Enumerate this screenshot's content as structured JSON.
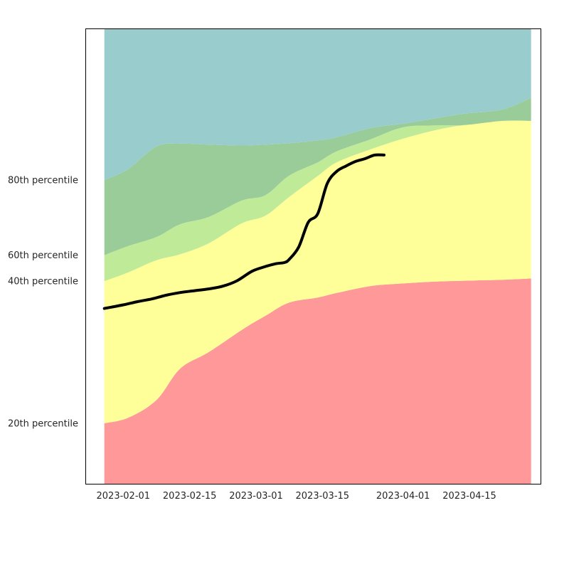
{
  "chart_data": {
    "type": "area",
    "x_axis_type": "date",
    "x_range": [
      "2023-01-24",
      "2023-04-30"
    ],
    "y_range": [
      0,
      100
    ],
    "grid": false,
    "legend": "none",
    "x_ticks": [
      {
        "date": "2023-02-01",
        "label": "2023-02-01"
      },
      {
        "date": "2023-02-15",
        "label": "2023-02-15"
      },
      {
        "date": "2023-03-01",
        "label": "2023-03-01"
      },
      {
        "date": "2023-03-15",
        "label": "2023-03-15"
      },
      {
        "date": "2023-04-01",
        "label": "2023-04-01"
      },
      {
        "date": "2023-04-15",
        "label": "2023-04-15"
      }
    ],
    "y_ticks": [
      {
        "value": 13.3,
        "label": "20th percentile"
      },
      {
        "value": 44.5,
        "label": "40th percentile"
      },
      {
        "value": 50.2,
        "label": "60th percentile"
      },
      {
        "value": 66.7,
        "label": "80th percentile"
      }
    ],
    "band_dates": [
      "2023-01-28",
      "2023-02-02",
      "2023-02-08",
      "2023-02-13",
      "2023-02-19",
      "2023-02-26",
      "2023-03-03",
      "2023-03-08",
      "2023-03-14",
      "2023-03-18",
      "2023-03-25",
      "2023-04-01",
      "2023-04-08",
      "2023-04-14",
      "2023-04-22",
      "2023-04-28"
    ],
    "bands": [
      {
        "name": "band_0_20",
        "color": "#ff9999",
        "lower": [
          0,
          0,
          0,
          0,
          0,
          0,
          0,
          0,
          0,
          0,
          0,
          0,
          0,
          0,
          0,
          0
        ],
        "upper": [
          13.3,
          14.5,
          18.4,
          25.3,
          28.9,
          33.8,
          36.9,
          39.8,
          40.9,
          41.9,
          43.4,
          44.0,
          44.4,
          44.6,
          44.8,
          45.1
        ]
      },
      {
        "name": "band_20_40",
        "color": "#ffff99",
        "lower": [
          13.3,
          14.5,
          18.4,
          25.3,
          28.9,
          33.8,
          36.9,
          39.8,
          40.9,
          41.9,
          43.4,
          44.0,
          44.4,
          44.6,
          44.8,
          45.1
        ],
        "upper": [
          44.5,
          46.4,
          49.1,
          50.4,
          52.8,
          57.2,
          58.9,
          63.0,
          67.6,
          70.6,
          73.4,
          75.8,
          77.7,
          78.8,
          79.7,
          79.7
        ]
      },
      {
        "name": "band_40_60",
        "color": "#bfeb99",
        "lower": [
          44.5,
          46.4,
          49.1,
          50.4,
          52.8,
          57.2,
          58.9,
          63.0,
          67.6,
          70.6,
          73.4,
          75.8,
          77.7,
          78.8,
          79.7,
          79.7
        ],
        "upper": [
          50.2,
          52.2,
          54.2,
          57.0,
          58.6,
          62.2,
          63.4,
          67.7,
          70.6,
          73.0,
          75.6,
          78.3,
          78.7,
          78.8,
          79.7,
          79.7
        ]
      },
      {
        "name": "band_60_80",
        "color": "#99cc99",
        "lower": [
          50.2,
          52.2,
          54.2,
          57.0,
          58.6,
          62.2,
          63.4,
          67.7,
          70.6,
          73.0,
          75.6,
          78.3,
          78.7,
          78.8,
          79.7,
          79.7
        ],
        "upper": [
          66.7,
          69.1,
          74.1,
          74.7,
          74.5,
          74.3,
          74.5,
          74.8,
          75.4,
          76.1,
          78.1,
          79.1,
          80.3,
          81.3,
          82.2,
          84.8
        ]
      },
      {
        "name": "band_80_100",
        "color": "#99cccc",
        "lower": [
          66.7,
          69.1,
          74.1,
          74.7,
          74.5,
          74.3,
          74.5,
          74.8,
          75.4,
          76.1,
          78.1,
          79.1,
          80.3,
          81.3,
          82.2,
          84.8
        ],
        "upper": [
          100,
          100,
          100,
          100,
          100,
          100,
          100,
          100,
          100,
          100,
          100,
          100,
          100,
          100,
          100,
          100
        ]
      }
    ],
    "series": [
      {
        "color": "#000000",
        "x": [
          "2023-01-28",
          "2023-02-01",
          "2023-02-04",
          "2023-02-07",
          "2023-02-10",
          "2023-02-13",
          "2023-02-16",
          "2023-02-19",
          "2023-02-22",
          "2023-02-25",
          "2023-02-28",
          "2023-03-02",
          "2023-03-05",
          "2023-03-07",
          "2023-03-08",
          "2023-03-10",
          "2023-03-12",
          "2023-03-14",
          "2023-03-16",
          "2023-03-18",
          "2023-03-20",
          "2023-03-22",
          "2023-03-24",
          "2023-03-26",
          "2023-03-28"
        ],
        "y": [
          38.5,
          39.3,
          40.0,
          40.6,
          41.4,
          42.0,
          42.4,
          42.8,
          43.4,
          44.6,
          46.6,
          47.4,
          48.3,
          48.6,
          49.3,
          52.0,
          57.4,
          59.3,
          65.9,
          68.6,
          69.8,
          70.8,
          71.4,
          72.2,
          72.2
        ]
      }
    ]
  }
}
